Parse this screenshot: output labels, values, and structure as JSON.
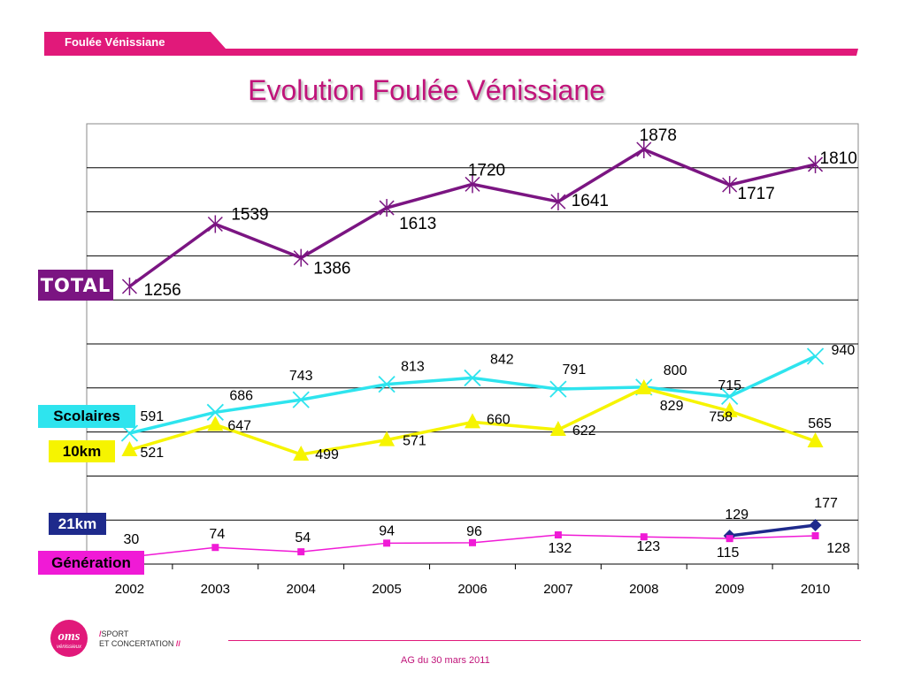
{
  "header": {
    "label": "Foulée Vénissiane"
  },
  "chart_data": {
    "type": "line",
    "title": "Evolution Foulée Vénissiane",
    "categories": [
      "2002",
      "2003",
      "2004",
      "2005",
      "2006",
      "2007",
      "2008",
      "2009",
      "2010"
    ],
    "grid": true,
    "series": [
      {
        "name": "TOTAL",
        "color": "#7b1582",
        "marker": "asterisk",
        "values": [
          1256,
          1539,
          1386,
          1613,
          1720,
          1641,
          1878,
          1717,
          1810
        ]
      },
      {
        "name": "Scolaires",
        "color": "#2ee4ee",
        "marker": "x",
        "values": [
          591,
          686,
          743,
          813,
          842,
          791,
          800,
          758,
          940
        ]
      },
      {
        "name": "10km",
        "color": "#f6f400",
        "marker": "triangle",
        "values": [
          521,
          647,
          499,
          571,
          660,
          622,
          829,
          715,
          565
        ]
      },
      {
        "name": "21km",
        "color": "#1e2a8c",
        "marker": "diamond",
        "values": [
          null,
          null,
          null,
          null,
          null,
          null,
          null,
          129,
          177
        ]
      },
      {
        "name": "Génération",
        "color": "#f01ad6",
        "marker": "square",
        "values": [
          30,
          74,
          54,
          94,
          96,
          132,
          123,
          115,
          128
        ]
      }
    ]
  },
  "footer": {
    "brand_line1": "SPORT",
    "brand_line2": "ET CONCERTATION",
    "logo_text": "oms",
    "logo_subtext": "vénissieux",
    "caption": "AG du 30 mars 2011"
  }
}
